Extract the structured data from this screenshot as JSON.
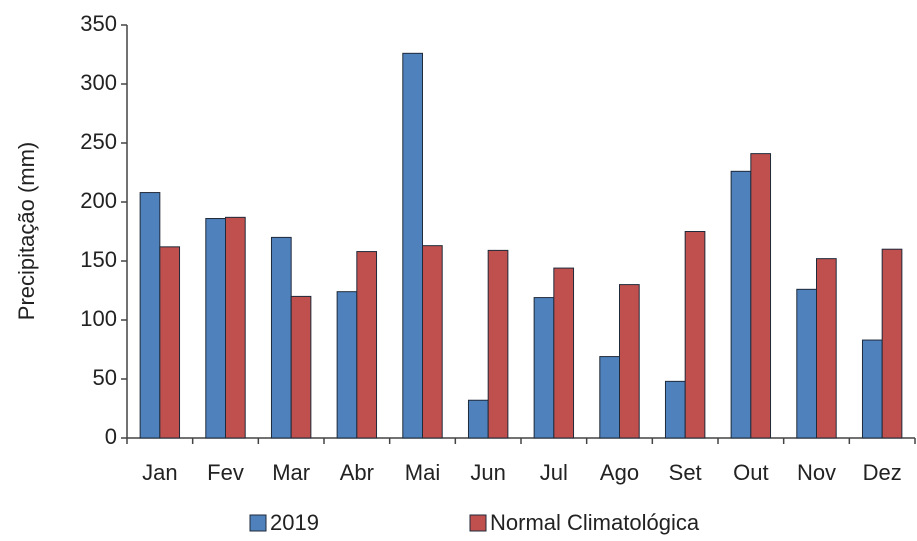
{
  "chart_data": {
    "type": "bar",
    "y_label": "Precipitação (mm)",
    "categories": [
      "Jan",
      "Fev",
      "Mar",
      "Abr",
      "Mai",
      "Jun",
      "Jul",
      "Ago",
      "Set",
      "Out",
      "Nov",
      "Dez"
    ],
    "series": [
      {
        "name": "2019",
        "color": "#4f81bd",
        "values": [
          208,
          186,
          170,
          124,
          326,
          32,
          119,
          69,
          48,
          226,
          126,
          83
        ]
      },
      {
        "name": "Normal Climatológica",
        "color": "#c0504d",
        "values": [
          162,
          187,
          120,
          158,
          163,
          159,
          144,
          130,
          175,
          241,
          152,
          160
        ]
      }
    ],
    "ylim": [
      0,
      350
    ],
    "yticks": [
      0,
      50,
      100,
      150,
      200,
      250,
      300,
      350
    ],
    "legend": "bottom"
  }
}
